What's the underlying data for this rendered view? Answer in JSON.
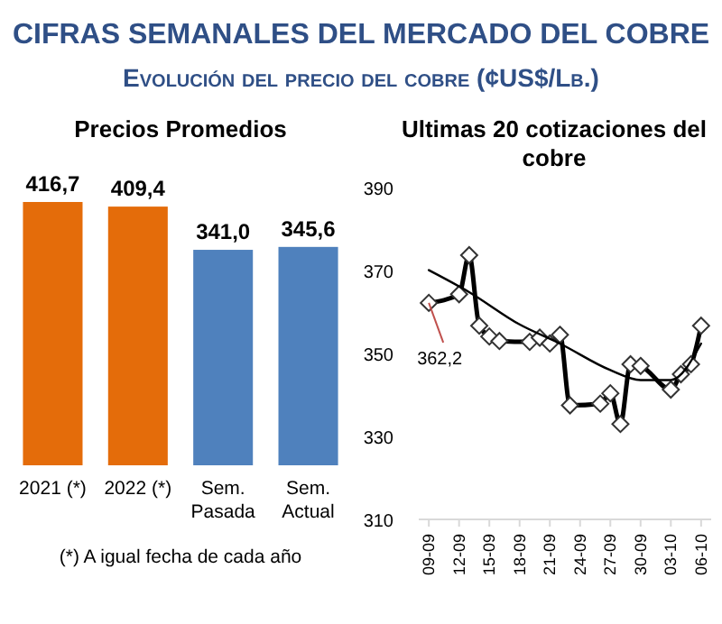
{
  "chart_data": [
    {
      "type": "other",
      "title": "CIFRAS SEMANALES DEL MERCADO DEL COBRE",
      "subtitle": "Evolución del precio del cobre (¢US$/Lb.)"
    },
    {
      "type": "bar",
      "title": "Precios Promedios",
      "categories": [
        "2021 (*)",
        "2022 (*)",
        "Sem. Pasada",
        "Sem. Actual"
      ],
      "values": [
        416.7,
        409.4,
        341.0,
        345.6
      ],
      "colors": [
        "#e46c0a",
        "#e46c0a",
        "#4f81bd",
        "#4f81bd"
      ],
      "value_labels": [
        "416,7",
        "409,4",
        "341,0",
        "345,6"
      ],
      "annotations": [
        "(*) A igual fecha de cada año"
      ]
    },
    {
      "type": "line",
      "title": "Ultimas 20 cotizaciones del cobre",
      "marker": "diamond",
      "line_style": "solid",
      "series": [
        {
          "color": "#000000",
          "x": [
            "--09-09",
            "--09-12",
            "--09-13",
            "--09-14",
            "--09-15",
            "--09-16",
            "--09-19",
            "--09-20",
            "--09-21",
            "--09-22",
            "--09-23",
            "--09-26",
            "--09-27",
            "--09-28",
            "--09-29",
            "--09-30",
            "--10-03",
            "--10-04",
            "--10-05",
            "--10-06"
          ],
          "values": [
            362.2,
            364.3,
            373.7,
            356.7,
            354.1,
            353.0,
            352.8,
            353.8,
            352.4,
            354.5,
            337.5,
            337.9,
            340.4,
            333.0,
            347.4,
            347.0,
            341.3,
            345.0,
            347.4,
            356.7
          ]
        },
        {
          "type": "line",
          "marker": "none",
          "color": "#000000",
          "x": [
            "--09-09",
            "--09-13",
            "--09-18",
            "--09-22",
            "--09-27",
            "--09-30",
            "--10-03",
            "--10-06"
          ],
          "values": [
            370.1,
            364.8,
            357.0,
            352.4,
            346.0,
            343.6,
            343.6,
            352.4
          ]
        }
      ],
      "ylim": [
        310,
        390
      ],
      "yticks": [
        310,
        330,
        350,
        370,
        390
      ],
      "xlim": [
        "--09-08",
        "--10-07"
      ],
      "xticks": [
        {
          "value": "--09-09",
          "label": "09-09"
        },
        {
          "value": "--09-12",
          "label": "12-09"
        },
        {
          "value": "--09-15",
          "label": "15-09"
        },
        {
          "value": "--09-18",
          "label": "18-09"
        },
        {
          "value": "--09-21",
          "label": "21-09"
        },
        {
          "value": "--09-24",
          "label": "24-09"
        },
        {
          "value": "--09-27",
          "label": "27-09"
        },
        {
          "value": "--09-30",
          "label": "30-09"
        },
        {
          "value": "--10-03",
          "label": "03-10"
        },
        {
          "value": "--10-06",
          "label": "06-10"
        }
      ],
      "annotations": [
        {
          "text": "362,2",
          "x": "--09-09",
          "y": 362.2
        }
      ]
    }
  ]
}
